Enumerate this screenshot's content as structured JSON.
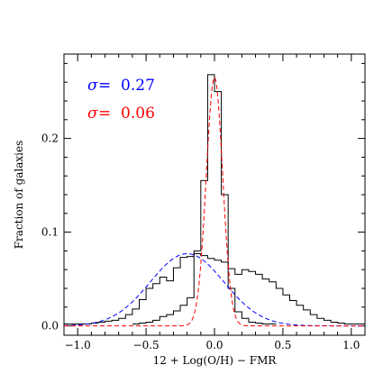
{
  "chart_data": {
    "type": "line",
    "xlabel": "12 + Log(O/H) − FMR",
    "ylabel": "Fraction of galaxies",
    "xlim": [
      -1.1,
      1.1
    ],
    "ylim": [
      -0.01,
      0.29
    ],
    "x_ticks": [
      -1.0,
      -0.5,
      0.0,
      0.5,
      1.0
    ],
    "x_tick_labels": [
      "−1.0",
      "−0.5",
      "0.0",
      "0.5",
      "1.0"
    ],
    "y_ticks": [
      0.0,
      0.1,
      0.2
    ],
    "y_tick_labels": [
      "0.0",
      "0.1",
      "0.2"
    ],
    "annotations": [
      {
        "sigma_symbol": "σ",
        "text": "=  0.27",
        "color": "#0000ff"
      },
      {
        "sigma_symbol": "σ",
        "text": "=  0.06",
        "color": "#ff0000"
      }
    ],
    "histograms": {
      "bin_width": 0.05,
      "broad": {
        "color": "#000000",
        "x_start": -1.1,
        "values": [
          0.002,
          0.002,
          0.002,
          0.002,
          0.003,
          0.004,
          0.005,
          0.006,
          0.008,
          0.012,
          0.018,
          0.028,
          0.04,
          0.045,
          0.052,
          0.048,
          0.062,
          0.073,
          0.074,
          0.077,
          0.075,
          0.072,
          0.07,
          0.068,
          0.061,
          0.055,
          0.06,
          0.058,
          0.055,
          0.05,
          0.047,
          0.04,
          0.033,
          0.027,
          0.022,
          0.017,
          0.012,
          0.008,
          0.006,
          0.004,
          0.003,
          0.002,
          0.002,
          0.002
        ]
      },
      "narrow": {
        "color": "#000000",
        "x_start": -0.6,
        "values": [
          0.002,
          0.003,
          0.004,
          0.006,
          0.01,
          0.012,
          0.016,
          0.022,
          0.03,
          0.08,
          0.155,
          0.268,
          0.25,
          0.14,
          0.04,
          0.015,
          0.008,
          0.004,
          0.003,
          0.002,
          0.002
        ]
      }
    },
    "series": [
      {
        "name": "σ = 0.27",
        "type": "gaussian",
        "mu": -0.2,
        "sigma": 0.27,
        "amplitude": 0.077,
        "color": "#0000ff",
        "dash": true
      },
      {
        "name": "σ = 0.06",
        "type": "gaussian",
        "mu": 0.0,
        "sigma": 0.06,
        "amplitude": 0.265,
        "color": "#ff0000",
        "dash": true
      }
    ]
  }
}
